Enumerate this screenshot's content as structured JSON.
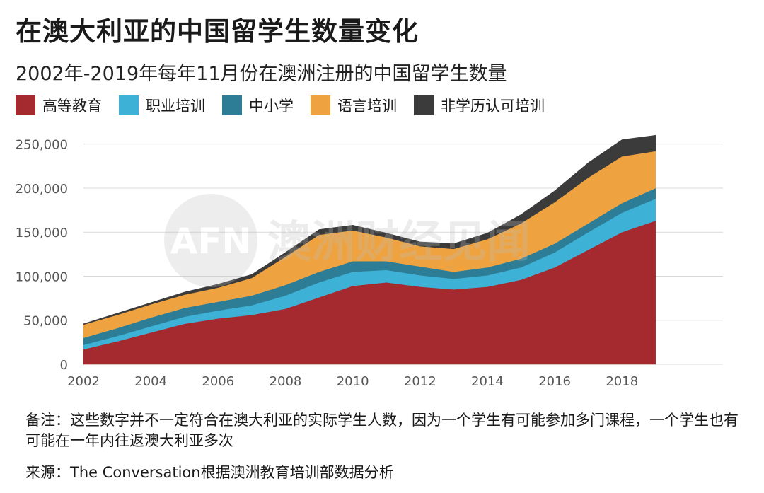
{
  "title": "在澳大利亚的中国留学生数量变化",
  "subtitle": "2002年-2019年每年11月份在澳洲注册的中国留学生数量",
  "legend": [
    {
      "name": "高等教育",
      "color": "#a52a2f"
    },
    {
      "name": "职业培训",
      "color": "#3db1d6"
    },
    {
      "name": "中小学",
      "color": "#2e7d96"
    },
    {
      "name": "语言培训",
      "color": "#efa340"
    },
    {
      "name": "非学历认可培训",
      "color": "#3b3b3b"
    }
  ],
  "watermark": {
    "logo": "AFN",
    "text": "澳洲财经见闻"
  },
  "note": "备注：这些数字并不一定符合在澳大利亚的实际学生人数，因为一个学生有可能参加多门课程，一个学生也有可能在一年内往返澳大利亚多次",
  "source": "来源：The Conversation根据澳洲教育培训部数据分析",
  "chart_data": {
    "type": "area",
    "stacked": true,
    "x": [
      2002,
      2003,
      2004,
      2005,
      2006,
      2007,
      2008,
      2009,
      2010,
      2011,
      2012,
      2013,
      2014,
      2015,
      2016,
      2017,
      2018,
      2019
    ],
    "x_ticks": [
      "2002",
      "2004",
      "2006",
      "2008",
      "2010",
      "2012",
      "2014",
      "2016",
      "2018"
    ],
    "x_tick_values": [
      2002,
      2004,
      2006,
      2008,
      2010,
      2012,
      2014,
      2016,
      2018
    ],
    "y_ticks": [
      "0",
      "50,000",
      "100,000",
      "150,000",
      "200,000",
      "250,000"
    ],
    "y_tick_values": [
      0,
      50000,
      100000,
      150000,
      200000,
      250000
    ],
    "ylim": [
      0,
      265000
    ],
    "xlim": [
      2002,
      2021
    ],
    "grid": true,
    "legend_position": "top-left",
    "series": [
      {
        "name": "高等教育",
        "color": "#a52a2f",
        "values": [
          17000,
          26000,
          36000,
          46000,
          52000,
          56000,
          63000,
          76000,
          89000,
          93000,
          88000,
          85000,
          88000,
          96000,
          110000,
          130000,
          150000,
          163000
        ]
      },
      {
        "name": "职业培训",
        "color": "#3db1d6",
        "values": [
          5000,
          6000,
          7000,
          8000,
          9000,
          11000,
          15000,
          17000,
          16000,
          14000,
          13000,
          12000,
          13000,
          14000,
          17000,
          20000,
          22000,
          25000
        ]
      },
      {
        "name": "中小学",
        "color": "#2e7d96",
        "values": [
          8000,
          9000,
          10000,
          10000,
          10000,
          11000,
          12000,
          12000,
          12000,
          10000,
          10000,
          8000,
          9000,
          10000,
          10000,
          10000,
          11000,
          12000
        ]
      },
      {
        "name": "语言培训",
        "color": "#efa340",
        "values": [
          15000,
          15000,
          15000,
          15000,
          16000,
          20000,
          32000,
          42000,
          35000,
          27000,
          23000,
          26000,
          32000,
          40000,
          47000,
          52000,
          53000,
          42000
        ]
      },
      {
        "name": "非学历认可培训",
        "color": "#3b3b3b",
        "values": [
          1000,
          2000,
          2000,
          3000,
          4000,
          4000,
          5000,
          6000,
          6000,
          5000,
          5000,
          6000,
          7000,
          10000,
          13000,
          17000,
          19000,
          18000
        ]
      }
    ]
  }
}
